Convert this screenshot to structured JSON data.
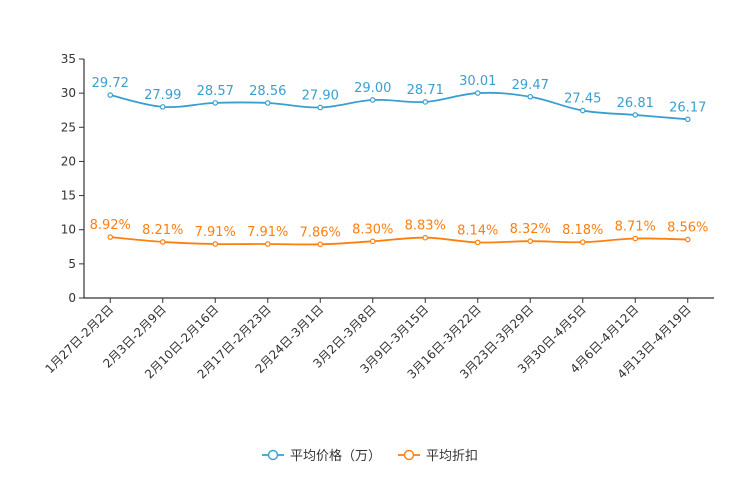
{
  "chart_data": {
    "type": "line",
    "title": "",
    "xlabel": "",
    "ylabel": "",
    "ylim": [
      0,
      35
    ],
    "yticks": [
      0,
      5,
      10,
      15,
      20,
      25,
      30,
      35
    ],
    "categories": [
      "1月27日-2月2日",
      "2月3日-2月9日",
      "2月10日-2月16日",
      "2月17日-2月23日",
      "2月24日-3月1日",
      "3月2日-3月8日",
      "3月9日-3月15日",
      "3月16日-3月22日",
      "3月23日-3月29日",
      "3月30日-4月5日",
      "4月6日-4月12日",
      "4月13日-4月19日"
    ],
    "series": [
      {
        "name": "平均价格（万）",
        "color": "#3a9fd0",
        "values": [
          29.72,
          27.99,
          28.57,
          28.56,
          27.9,
          29.0,
          28.71,
          30.01,
          29.47,
          27.45,
          26.81,
          26.17
        ],
        "labels": [
          "29.72",
          "27.99",
          "28.57",
          "28.56",
          "27.90",
          "29.00",
          "28.71",
          "30.01",
          "29.47",
          "27.45",
          "26.81",
          "26.17"
        ]
      },
      {
        "name": "平均折扣",
        "color": "#ff7f0e",
        "values": [
          8.92,
          8.21,
          7.91,
          7.91,
          7.86,
          8.3,
          8.83,
          8.14,
          8.32,
          8.18,
          8.71,
          8.56
        ],
        "labels": [
          "8.92%",
          "8.21%",
          "7.91%",
          "7.91%",
          "7.86%",
          "8.30%",
          "8.83%",
          "8.14%",
          "8.32%",
          "8.18%",
          "8.71%",
          "8.56%"
        ]
      }
    ],
    "legend": "bottom-center"
  }
}
